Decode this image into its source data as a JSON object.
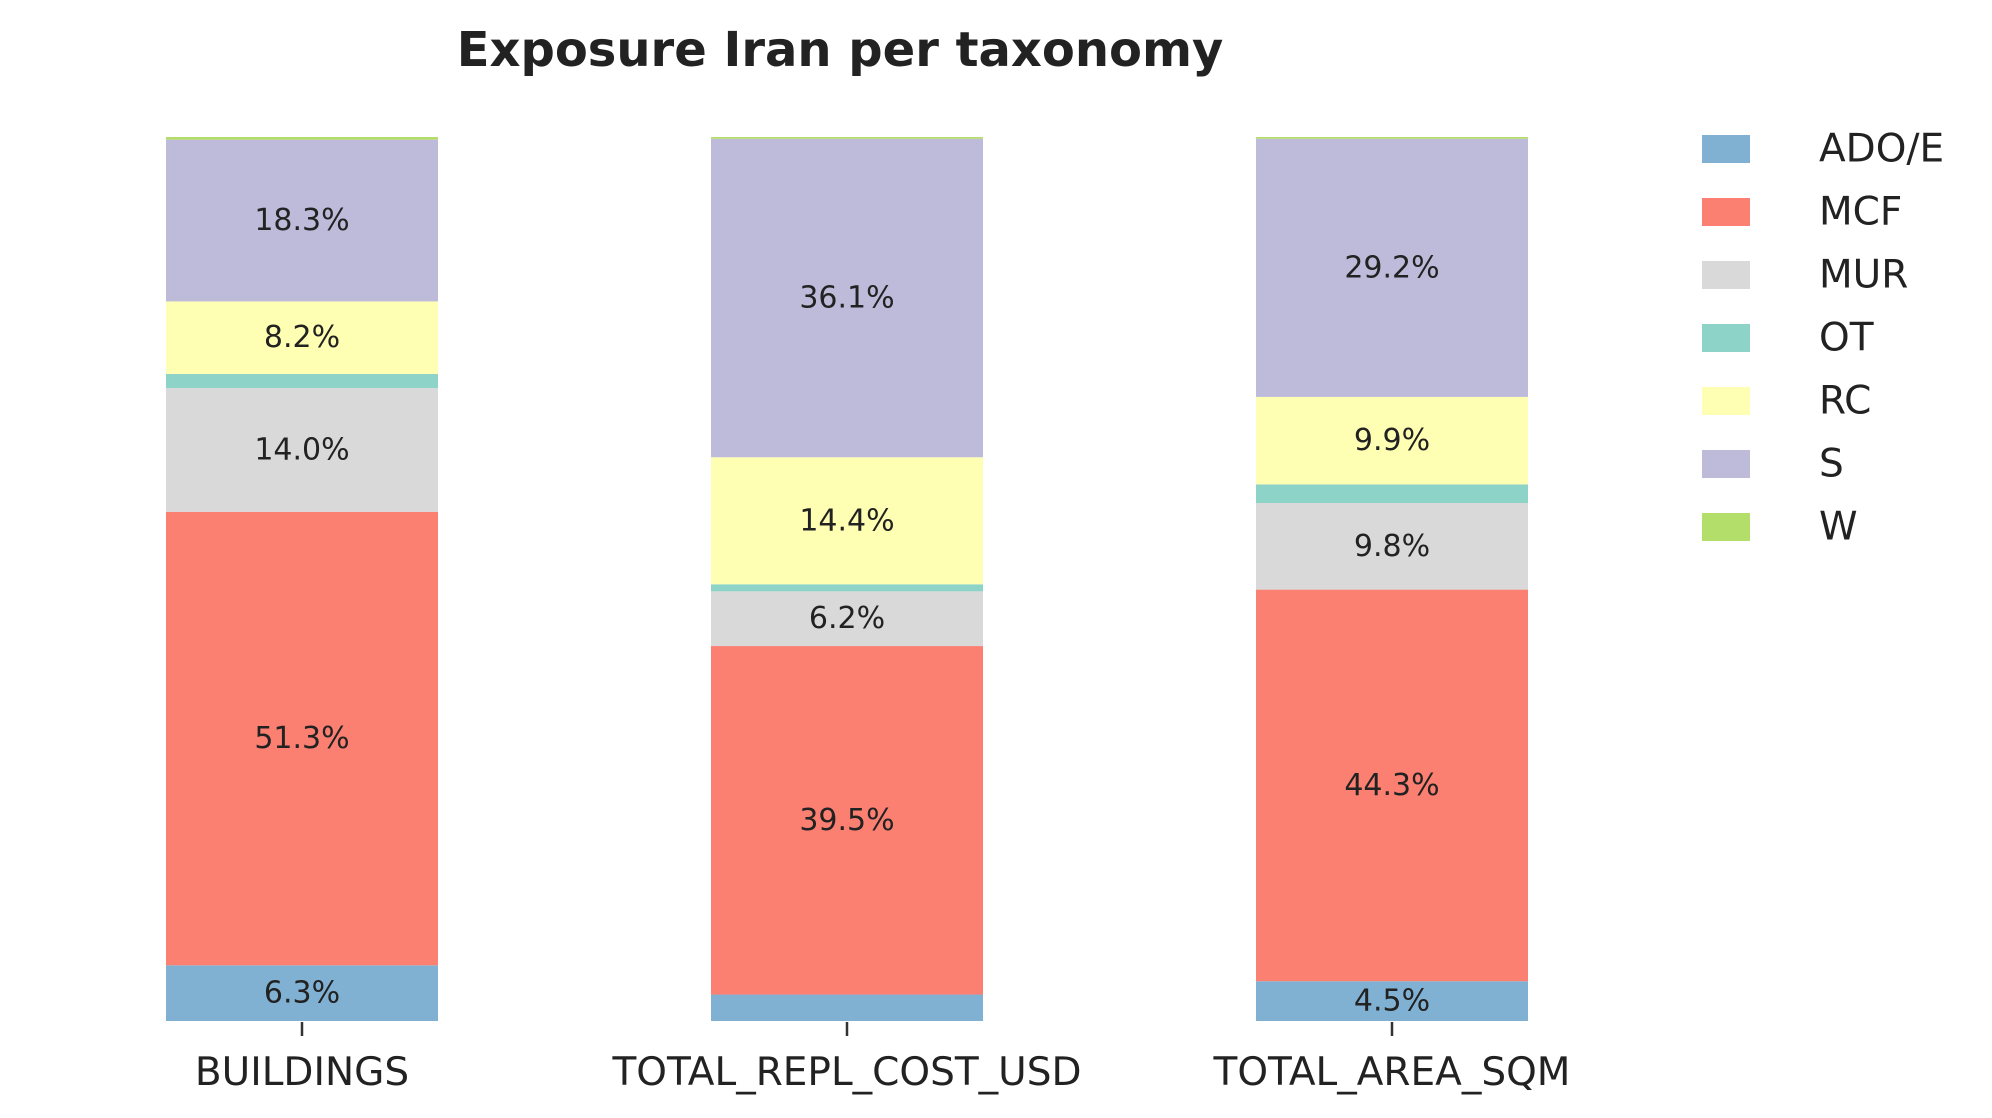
{
  "chart_data": {
    "type": "bar",
    "stacked": true,
    "normalized": true,
    "title": "Exposure Iran per taxonomy",
    "xlabel": "",
    "ylabel": "",
    "ylim": [
      0,
      100
    ],
    "categories": [
      "BUILDINGS",
      "TOTAL_REPL_COST_USD",
      "TOTAL_AREA_SQM"
    ],
    "series": [
      {
        "name": "ADO/E",
        "color": "#80b1d3",
        "values": [
          6.3,
          3.0,
          4.5
        ],
        "labels": [
          "6.3%",
          "",
          "4.5%"
        ]
      },
      {
        "name": "MCF",
        "color": "#fb8072",
        "values": [
          51.3,
          39.5,
          44.3
        ],
        "labels": [
          "51.3%",
          "39.5%",
          "44.3%"
        ]
      },
      {
        "name": "MUR",
        "color": "#d9d9d9",
        "values": [
          14.0,
          6.2,
          9.8
        ],
        "labels": [
          "14.0%",
          "6.2%",
          "9.8%"
        ]
      },
      {
        "name": "OT",
        "color": "#8dd3c7",
        "values": [
          1.6,
          0.8,
          2.1
        ],
        "labels": [
          "",
          "",
          ""
        ]
      },
      {
        "name": "RC",
        "color": "#ffffb3",
        "values": [
          8.2,
          14.4,
          9.9
        ],
        "labels": [
          "8.2%",
          "14.4%",
          "9.9%"
        ]
      },
      {
        "name": "S",
        "color": "#bebada",
        "values": [
          18.3,
          36.1,
          29.2
        ],
        "labels": [
          "18.3%",
          "36.1%",
          "29.2%"
        ]
      },
      {
        "name": "W",
        "color": "#b3de69",
        "values": [
          0.3,
          0.2,
          0.2
        ],
        "labels": [
          "",
          "",
          ""
        ]
      }
    ],
    "legend": "right",
    "grid": false
  }
}
